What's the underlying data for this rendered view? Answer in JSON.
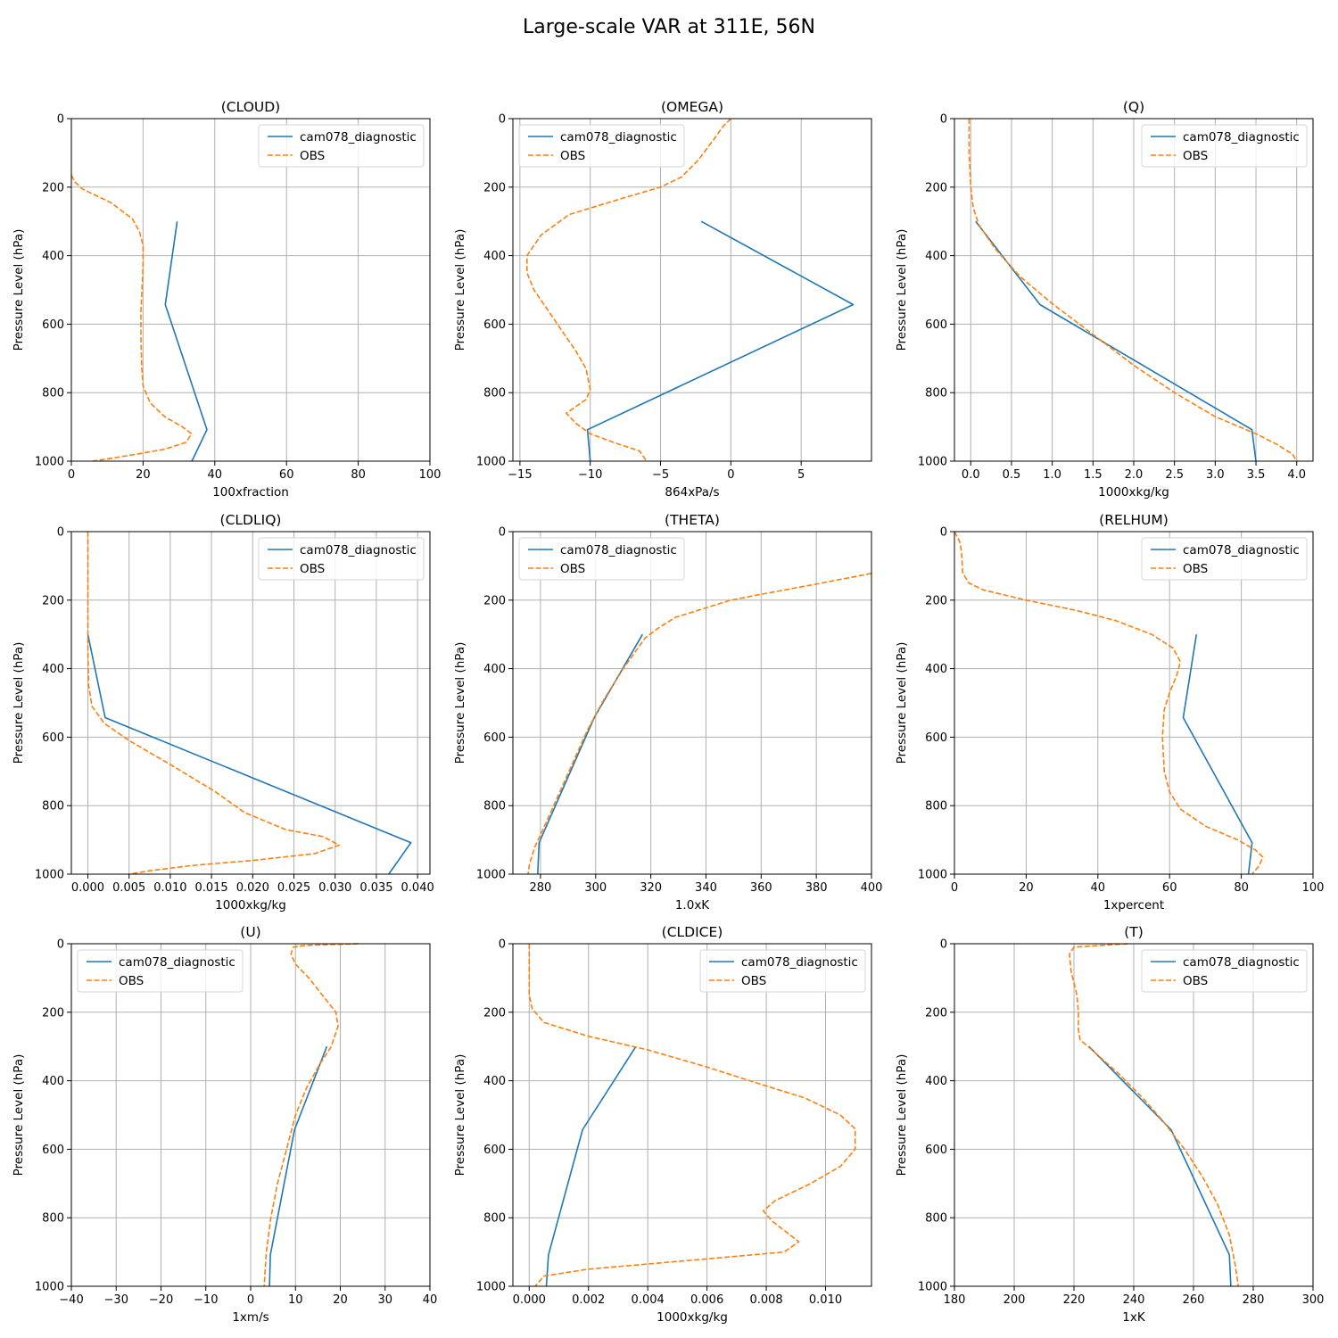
{
  "figure": {
    "title": "Large-scale VAR at 311E, 56N"
  },
  "colors": {
    "model": "#1f77b4",
    "obs": "#ff7f0e",
    "grid": "#b0b0b0"
  },
  "chart_data": [
    {
      "type": "line",
      "title": "(CLOUD)",
      "xlabel": "100xfraction",
      "ylabel": "Pressure Level (hPa)",
      "xlim": [
        0,
        100
      ],
      "ylim": [
        1000,
        0
      ],
      "xticks": [
        0,
        20,
        40,
        60,
        80,
        100
      ],
      "xtick_labels": [
        "0",
        "20",
        "40",
        "60",
        "80",
        "100"
      ],
      "yticks": [
        0,
        200,
        400,
        600,
        800,
        1000
      ],
      "ytick_labels": [
        "0",
        "200",
        "400",
        "600",
        "800",
        "1000"
      ],
      "grid": true,
      "legend_loc": "upper right",
      "series": [
        {
          "name": "cam078_diagnostic",
          "style": "solid",
          "x": [
            29.5,
            26.2,
            37.8,
            33.6
          ],
          "y": [
            300,
            543,
            908,
            1000
          ]
        },
        {
          "name": "OBS",
          "style": "dashed",
          "x": [
            0,
            1,
            3,
            6,
            11,
            17,
            19,
            20,
            20,
            19.8,
            19.4,
            19.4,
            19.6,
            20,
            22,
            26,
            31,
            33.5,
            32,
            26,
            18,
            11,
            6
          ],
          "y": [
            165,
            185,
            205,
            220,
            245,
            292,
            330,
            370,
            420,
            480,
            560,
            640,
            720,
            780,
            830,
            870,
            900,
            920,
            945,
            965,
            980,
            992,
            1000
          ]
        }
      ]
    },
    {
      "type": "line",
      "title": "(OMEGA)",
      "xlabel": "864xPa/s",
      "ylabel": "Pressure Level (hPa)",
      "xlim": [
        -15.5,
        10
      ],
      "ylim": [
        1000,
        0
      ],
      "xticks": [
        -15,
        -10,
        -5,
        0,
        5
      ],
      "xtick_labels": [
        "−15",
        "−10",
        "−5",
        "0",
        "5"
      ],
      "yticks": [
        0,
        200,
        400,
        600,
        800,
        1000
      ],
      "ytick_labels": [
        "0",
        "200",
        "400",
        "600",
        "800",
        "1000"
      ],
      "grid": true,
      "legend_loc": "upper left",
      "series": [
        {
          "name": "cam078_diagnostic",
          "style": "solid",
          "x": [
            -2.1,
            8.7,
            -10.2,
            -10.0
          ],
          "y": [
            300,
            543,
            908,
            1000
          ]
        },
        {
          "name": "OBS",
          "style": "dashed",
          "x": [
            0,
            -0.5,
            -1.2,
            -2.3,
            -3.5,
            -5,
            -7.5,
            -11.5,
            -13.5,
            -14.5,
            -14.5,
            -14,
            -13,
            -12,
            -11,
            -10.3,
            -10,
            -10.3,
            -11,
            -11.7,
            -11,
            -10,
            -8,
            -6.5,
            -6
          ],
          "y": [
            0,
            20,
            60,
            120,
            170,
            200,
            230,
            280,
            340,
            400,
            450,
            500,
            560,
            620,
            680,
            730,
            790,
            820,
            840,
            860,
            890,
            920,
            950,
            970,
            1000
          ]
        }
      ]
    },
    {
      "type": "line",
      "title": "(Q)",
      "xlabel": "1000xkg/kg",
      "ylabel": "Pressure Level (hPa)",
      "xlim": [
        -0.2,
        4.2
      ],
      "ylim": [
        1000,
        0
      ],
      "xticks": [
        0,
        0.5,
        1,
        1.5,
        2,
        2.5,
        3,
        3.5,
        4
      ],
      "xtick_labels": [
        "0.0",
        "0.5",
        "1.0",
        "1.5",
        "2.0",
        "2.5",
        "3.0",
        "3.5",
        "4.0"
      ],
      "yticks": [
        0,
        200,
        400,
        600,
        800,
        1000
      ],
      "ytick_labels": [
        "0",
        "200",
        "400",
        "600",
        "800",
        "1000"
      ],
      "grid": true,
      "legend_loc": "upper right",
      "series": [
        {
          "name": "cam078_diagnostic",
          "style": "solid",
          "x": [
            0.06,
            0.85,
            3.45,
            3.5
          ],
          "y": [
            300,
            543,
            908,
            1000
          ]
        },
        {
          "name": "OBS",
          "style": "dashed",
          "x": [
            -0.02,
            -0.02,
            0,
            0.03,
            0.1,
            0.3,
            0.6,
            1.0,
            1.5,
            2.0,
            2.5,
            3.0,
            3.5,
            3.75,
            3.95,
            4.0
          ],
          "y": [
            0,
            100,
            200,
            260,
            310,
            380,
            460,
            540,
            630,
            720,
            800,
            870,
            920,
            950,
            980,
            1000
          ]
        }
      ]
    },
    {
      "type": "line",
      "title": "(CLDLIQ)",
      "xlabel": "1000xkg/kg",
      "ylabel": "Pressure Level (hPa)",
      "xlim": [
        -0.002,
        0.0415
      ],
      "ylim": [
        1000,
        0
      ],
      "xticks": [
        0,
        0.005,
        0.01,
        0.015,
        0.02,
        0.025,
        0.03,
        0.035,
        0.04
      ],
      "xtick_labels": [
        "0.000",
        "0.005",
        "0.010",
        "0.015",
        "0.020",
        "0.025",
        "0.030",
        "0.035",
        "0.040"
      ],
      "yticks": [
        0,
        200,
        400,
        600,
        800,
        1000
      ],
      "ytick_labels": [
        "0",
        "200",
        "400",
        "600",
        "800",
        "1000"
      ],
      "grid": true,
      "legend_loc": "upper right",
      "series": [
        {
          "name": "cam078_diagnostic",
          "style": "solid",
          "x": [
            0,
            0.0021,
            0.0392,
            0.0365
          ],
          "y": [
            300,
            543,
            908,
            1000
          ]
        },
        {
          "name": "OBS",
          "style": "dashed",
          "x": [
            0,
            0,
            0,
            0.0001,
            0.0005,
            0.002,
            0.005,
            0.01,
            0.0155,
            0.019,
            0.024,
            0.0285,
            0.0305,
            0.0275,
            0.02,
            0.0125,
            0.0075,
            0.005
          ],
          "y": [
            0,
            200,
            350,
            450,
            510,
            560,
            610,
            680,
            760,
            820,
            870,
            890,
            915,
            940,
            960,
            975,
            990,
            1000
          ]
        }
      ]
    },
    {
      "type": "line",
      "title": "(THETA)",
      "xlabel": "1.0xK",
      "ylabel": "Pressure Level (hPa)",
      "xlim": [
        270,
        400
      ],
      "ylim": [
        1000,
        0
      ],
      "xticks": [
        280,
        300,
        320,
        340,
        360,
        380,
        400
      ],
      "xtick_labels": [
        "280",
        "300",
        "320",
        "340",
        "360",
        "380",
        "400"
      ],
      "yticks": [
        0,
        200,
        400,
        600,
        800,
        1000
      ],
      "ytick_labels": [
        "0",
        "200",
        "400",
        "600",
        "800",
        "1000"
      ],
      "grid": true,
      "legend_loc": "upper left",
      "series": [
        {
          "name": "cam078_diagnostic",
          "style": "solid",
          "x": [
            317,
            299.5,
            279.5,
            279
          ],
          "y": [
            300,
            543,
            908,
            1000
          ]
        },
        {
          "name": "OBS",
          "style": "dashed",
          "x": [
            400,
            382,
            362,
            349,
            339,
            329,
            323,
            318,
            310,
            303,
            297,
            292,
            287,
            282,
            278,
            276,
            275.5
          ],
          "y": [
            122,
            150,
            180,
            200,
            225,
            250,
            280,
            310,
            400,
            490,
            580,
            670,
            760,
            850,
            920,
            970,
            1000
          ]
        }
      ]
    },
    {
      "type": "line",
      "title": "(RELHUM)",
      "xlabel": "1xpercent",
      "ylabel": "Pressure Level (hPa)",
      "xlim": [
        0,
        100
      ],
      "ylim": [
        1000,
        0
      ],
      "xticks": [
        0,
        20,
        40,
        60,
        80,
        100
      ],
      "xtick_labels": [
        "0",
        "20",
        "40",
        "60",
        "80",
        "100"
      ],
      "yticks": [
        0,
        200,
        400,
        600,
        800,
        1000
      ],
      "ytick_labels": [
        "0",
        "200",
        "400",
        "600",
        "800",
        "1000"
      ],
      "grid": true,
      "legend_loc": "upper right",
      "series": [
        {
          "name": "cam078_diagnostic",
          "style": "solid",
          "x": [
            67.5,
            63.8,
            83,
            82
          ],
          "y": [
            300,
            543,
            908,
            1000
          ]
        },
        {
          "name": "OBS",
          "style": "dashed",
          "x": [
            0,
            1.5,
            2,
            2.3,
            4,
            8,
            20,
            34,
            45,
            55,
            61,
            63,
            62,
            60,
            58.5,
            58,
            58.5,
            60,
            63,
            70,
            79,
            84,
            86,
            85,
            83
          ],
          "y": [
            0,
            30,
            60,
            120,
            150,
            170,
            200,
            230,
            260,
            300,
            340,
            380,
            420,
            470,
            520,
            600,
            700,
            760,
            810,
            860,
            900,
            930,
            950,
            975,
            1000
          ]
        }
      ]
    },
    {
      "type": "line",
      "title": "(U)",
      "xlabel": "1xm/s",
      "ylabel": "Pressure Level (hPa)",
      "xlim": [
        -40,
        40
      ],
      "ylim": [
        1000,
        0
      ],
      "xticks": [
        -40,
        -30,
        -20,
        -10,
        0,
        10,
        20,
        30,
        40
      ],
      "xtick_labels": [
        "−40",
        "−30",
        "−20",
        "−10",
        "0",
        "10",
        "20",
        "30",
        "40"
      ],
      "yticks": [
        0,
        200,
        400,
        600,
        800,
        1000
      ],
      "ytick_labels": [
        "0",
        "200",
        "400",
        "600",
        "800",
        "1000"
      ],
      "grid": true,
      "legend_loc": "upper left",
      "series": [
        {
          "name": "cam078_diagnostic",
          "style": "solid",
          "x": [
            17,
            9.8,
            4.4,
            4.2
          ],
          "y": [
            300,
            543,
            908,
            1000
          ]
        },
        {
          "name": "OBS",
          "style": "dashed",
          "x": [
            24,
            12,
            9.5,
            9,
            10,
            13,
            16,
            19,
            19.5,
            18,
            15.5,
            12.5,
            10,
            8,
            6,
            4.5,
            3.5,
            3
          ],
          "y": [
            0,
            5,
            10,
            30,
            60,
            100,
            150,
            200,
            240,
            300,
            350,
            420,
            500,
            600,
            700,
            800,
            900,
            1000
          ]
        }
      ]
    },
    {
      "type": "line",
      "title": "(CLDICE)",
      "xlabel": "1000xkg/kg",
      "ylabel": "Pressure Level (hPa)",
      "xlim": [
        -0.00055,
        0.01155
      ],
      "ylim": [
        1000,
        0
      ],
      "xticks": [
        0,
        0.002,
        0.004,
        0.006,
        0.008,
        0.01
      ],
      "xtick_labels": [
        "0.000",
        "0.002",
        "0.004",
        "0.006",
        "0.008",
        "0.010"
      ],
      "yticks": [
        0,
        200,
        400,
        600,
        800,
        1000
      ],
      "ytick_labels": [
        "0",
        "200",
        "400",
        "600",
        "800",
        "1000"
      ],
      "grid": true,
      "legend_loc": "upper right",
      "series": [
        {
          "name": "cam078_diagnostic",
          "style": "solid",
          "x": [
            0.0036,
            0.0018,
            0.00065,
            0.00058
          ],
          "y": [
            300,
            543,
            908,
            1000
          ]
        },
        {
          "name": "OBS",
          "style": "dashed",
          "x": [
            0,
            0,
            0.0001,
            0.0005,
            0.002,
            0.004,
            0.006,
            0.0078,
            0.0093,
            0.0105,
            0.011,
            0.011,
            0.0105,
            0.0095,
            0.0083,
            0.0079,
            0.0082,
            0.0091,
            0.0086,
            0.006,
            0.002,
            0.0005,
            0.0002
          ],
          "y": [
            0,
            150,
            190,
            230,
            270,
            310,
            360,
            410,
            450,
            500,
            540,
            600,
            650,
            700,
            750,
            780,
            810,
            870,
            900,
            920,
            950,
            970,
            1000
          ]
        }
      ]
    },
    {
      "type": "line",
      "title": "(T)",
      "xlabel": "1xK",
      "ylabel": "Pressure Level (hPa)",
      "xlim": [
        180,
        300
      ],
      "ylim": [
        1000,
        0
      ],
      "xticks": [
        180,
        200,
        220,
        240,
        260,
        280,
        300
      ],
      "xtick_labels": [
        "180",
        "200",
        "220",
        "240",
        "260",
        "280",
        "300"
      ],
      "yticks": [
        0,
        200,
        400,
        600,
        800,
        1000
      ],
      "ytick_labels": [
        "0",
        "200",
        "400",
        "600",
        "800",
        "1000"
      ],
      "grid": true,
      "legend_loc": "upper right",
      "series": [
        {
          "name": "cam078_diagnostic",
          "style": "solid",
          "x": [
            225,
            252.5,
            272,
            272.5
          ],
          "y": [
            300,
            543,
            908,
            1000
          ]
        },
        {
          "name": "OBS",
          "style": "dashed",
          "x": [
            238,
            220,
            218.5,
            219,
            221,
            221.5,
            221.5,
            222,
            226,
            235,
            243,
            250,
            257,
            263,
            268,
            272,
            274,
            275
          ],
          "y": [
            0,
            10,
            30,
            80,
            150,
            200,
            250,
            280,
            310,
            380,
            450,
            520,
            600,
            680,
            760,
            850,
            940,
            1000
          ]
        }
      ]
    }
  ]
}
